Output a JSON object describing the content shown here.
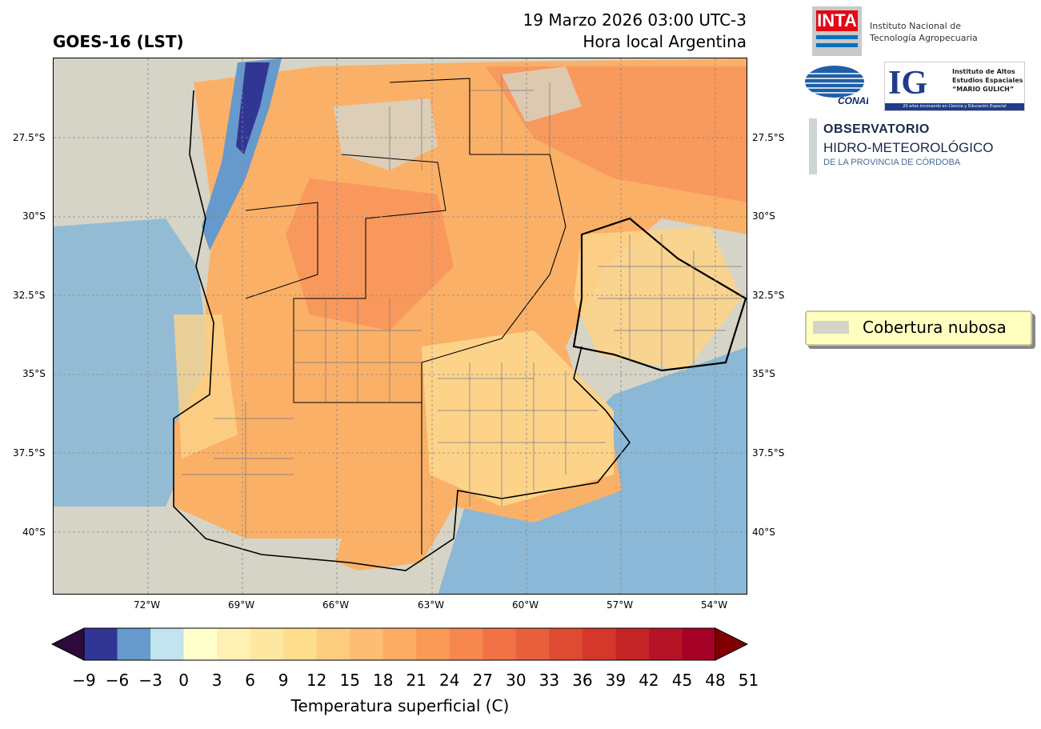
{
  "header": {
    "title_left": "GOES-16 (LST)",
    "date_line": "19 Marzo 2026 03:00 UTC-3",
    "local_line": "Hora local Argentina"
  },
  "map": {
    "lat_labels": [
      "27.5°S",
      "30°S",
      "32.5°S",
      "35°S",
      "37.5°S",
      "40°S"
    ],
    "lon_labels": [
      "72°W",
      "69°W",
      "66°W",
      "63°W",
      "60°W",
      "57°W",
      "54°W"
    ],
    "colors": {
      "cloud": "#d6d4c6",
      "warm": "#fbb067",
      "mild": "#fdd38a",
      "hot": "#f7925a",
      "cold_water": "#7eb3d8",
      "very_cold": "#2b3492",
      "cool": "#bfe3ee"
    }
  },
  "logos": {
    "inta_abbrev": "INTA",
    "inta_name_1": "Instituto Nacional de",
    "inta_name_2": "Tecnología Agropecuaria",
    "conae": "CONAE",
    "ig_letters": "IG",
    "ig_line1": "Instituto de Altos",
    "ig_line2": "Estudios Espaciales",
    "ig_line3": "“MARIO GULICH”",
    "ig_footer": "20 años innovando en Ciencia y Educación Espacial",
    "obs_line1": "OBSERVATORIO",
    "obs_line2": "HIDRO-METEOROLÓGICO",
    "obs_line3": "DE LA PROVINCIA DE CÓRDOBA"
  },
  "legend": {
    "label": "Cobertura nubosa",
    "swatch_color": "#d6d4c6"
  },
  "colorbar": {
    "title": "Temperatura superficial (C)",
    "ticks": [
      "−9",
      "−6",
      "−3",
      "0",
      "3",
      "6",
      "9",
      "12",
      "15",
      "18",
      "21",
      "24",
      "27",
      "30",
      "33",
      "36",
      "39",
      "42",
      "45",
      "48",
      "51"
    ],
    "colors": [
      "#313695",
      "#6699cc",
      "#c1e4ef",
      "#ffffcc",
      "#fff1b3",
      "#fee7a0",
      "#fedd8c",
      "#fdcd7f",
      "#fdbd72",
      "#fcac64",
      "#fa9a56",
      "#f6874e",
      "#f07246",
      "#e85f3c",
      "#de4b32",
      "#d5382a",
      "#c52427",
      "#b51427",
      "#a50026"
    ],
    "under_color": "#2d0a3a",
    "over_color": "#800000"
  }
}
